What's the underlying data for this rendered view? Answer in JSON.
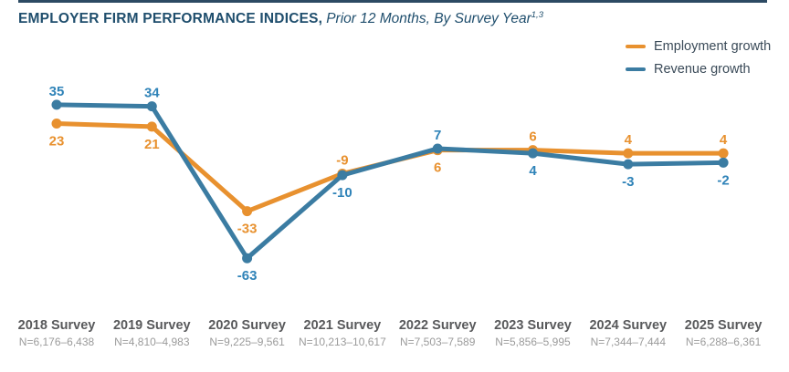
{
  "header": {
    "title": "EMPLOYER FIRM PERFORMANCE INDICES,",
    "subtitle": "Prior 12 Months, By Survey Year",
    "superscript": "1,3"
  },
  "colors": {
    "employment": "#E8912F",
    "revenue": "#3B7CA2",
    "revenue_label": "#2F83B8",
    "title_navy": "#1F4E6D",
    "legend_text": "#3A4A58",
    "axis_year": "#58595B",
    "axis_n": "#9B9B9B",
    "rule": "#2C4A63"
  },
  "legend": {
    "items": [
      {
        "label": "Employment growth",
        "series": "employment"
      },
      {
        "label": "Revenue growth",
        "series": "revenue"
      }
    ]
  },
  "chart_data": {
    "type": "line",
    "title": "EMPLOYER FIRM PERFORMANCE INDICES, Prior 12 Months, By Survey Year",
    "categories": [
      "2018 Survey",
      "2019 Survey",
      "2020 Survey",
      "2021 Survey",
      "2022 Survey",
      "2023 Survey",
      "2024 Survey",
      "2025 Survey"
    ],
    "n_labels": [
      "N=6,176–6,438",
      "N=4,810–4,983",
      "N=9,225–9,561",
      "N=10,213–10,617",
      "N=7,503–7,589",
      "N=5,856–5,995",
      "N=7,344–7,444",
      "N=6,288–6,361"
    ],
    "series": [
      {
        "name": "Employment growth",
        "color_key": "employment",
        "label_color_key": "employment",
        "values": [
          23,
          21,
          -33,
          -9,
          6,
          6,
          4,
          4
        ],
        "label_sides": [
          "below",
          "below",
          "below",
          "above",
          "below",
          "above",
          "above",
          "above"
        ]
      },
      {
        "name": "Revenue growth",
        "color_key": "revenue",
        "label_color_key": "revenue_label",
        "values": [
          35,
          34,
          -63,
          -10,
          7,
          4,
          -3,
          -2
        ],
        "label_sides": [
          "above",
          "above",
          "below",
          "below",
          "above",
          "below",
          "below",
          "below"
        ]
      }
    ],
    "ylim": [
      -75,
      45
    ],
    "grid": false,
    "legend_position": "top-right",
    "xlabel": "",
    "ylabel": ""
  }
}
